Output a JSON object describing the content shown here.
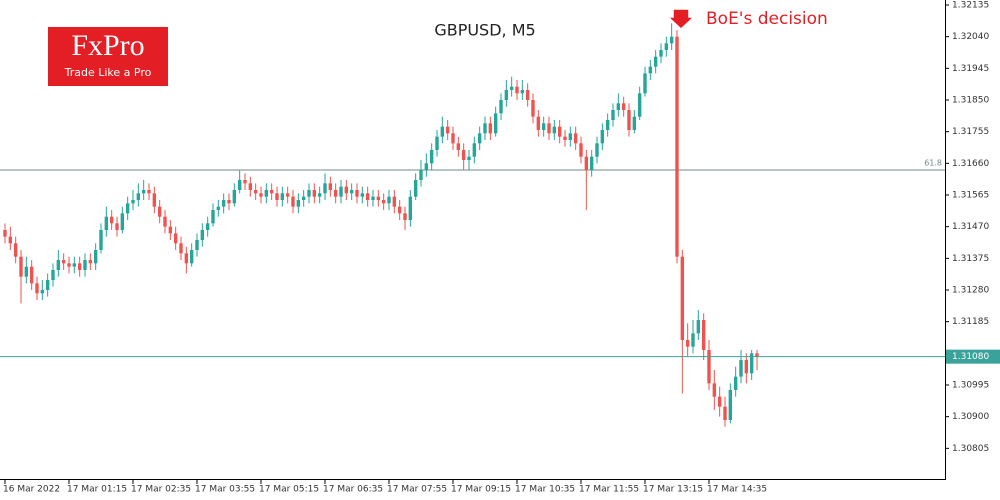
{
  "logo": {
    "brand": "FxPro",
    "tagline": "Trade Like a Pro"
  },
  "chart_data": {
    "type": "candlestick",
    "title": "GBPUSD, M5",
    "up_color": "#26a69a",
    "down_color": "#ef5350",
    "ylim": [
      1.3071,
      1.3215
    ],
    "yticks": [
      {
        "value": 1.32135,
        "label": "1.32135"
      },
      {
        "value": 1.3204,
        "label": "1.32040"
      },
      {
        "value": 1.31945,
        "label": "1.31945"
      },
      {
        "value": 1.3185,
        "label": "1.31850"
      },
      {
        "value": 1.31755,
        "label": "1.31755"
      },
      {
        "value": 1.3166,
        "label": "1.31660"
      },
      {
        "value": 1.31565,
        "label": "1.31565"
      },
      {
        "value": 1.3147,
        "label": "1.31470"
      },
      {
        "value": 1.31375,
        "label": "1.31375"
      },
      {
        "value": 1.3128,
        "label": "1.31280"
      },
      {
        "value": 1.31185,
        "label": "1.31185"
      },
      {
        "value": 1.30995,
        "label": "1.30995"
      },
      {
        "value": 1.309,
        "label": "1.30900"
      },
      {
        "value": 1.30805,
        "label": "1.30805"
      }
    ],
    "xticks": [
      {
        "value": 0,
        "label": "16 Mar 2022"
      },
      {
        "value": 12,
        "label": "17 Mar 01:15"
      },
      {
        "value": 24,
        "label": "17 Mar 02:35"
      },
      {
        "value": 36,
        "label": "17 Mar 03:55"
      },
      {
        "value": 48,
        "label": "17 Mar 05:15"
      },
      {
        "value": 60,
        "label": "17 Mar 06:35"
      },
      {
        "value": 72,
        "label": "17 Mar 07:55"
      },
      {
        "value": 84,
        "label": "17 Mar 09:15"
      },
      {
        "value": 96,
        "label": "17 Mar 10:35"
      },
      {
        "value": 108,
        "label": "17 Mar 11:55"
      },
      {
        "value": 120,
        "label": "17 Mar 13:15"
      },
      {
        "value": 132,
        "label": "17 Mar 14:35"
      }
    ],
    "level": {
      "label": "61.8",
      "value": 1.3164,
      "color": "#6f8c8a"
    },
    "last_price": {
      "value": 1.3108,
      "label": "1.31080",
      "color": "#3aa29a"
    },
    "annotation": "BoE's decision",
    "ohlc": [
      [
        1.3146,
        1.3148,
        1.3142,
        1.3144
      ],
      [
        1.3144,
        1.3147,
        1.314,
        1.3142
      ],
      [
        1.3142,
        1.3144,
        1.3136,
        1.3138
      ],
      [
        1.3138,
        1.314,
        1.3124,
        1.3132
      ],
      [
        1.3132,
        1.3138,
        1.313,
        1.3135
      ],
      [
        1.3135,
        1.3137,
        1.3128,
        1.313
      ],
      [
        1.313,
        1.3132,
        1.3125,
        1.3127
      ],
      [
        1.3127,
        1.3131,
        1.3125,
        1.3128
      ],
      [
        1.3128,
        1.3133,
        1.3126,
        1.3131
      ],
      [
        1.3131,
        1.3136,
        1.3129,
        1.3134
      ],
      [
        1.3134,
        1.314,
        1.3132,
        1.3137
      ],
      [
        1.3137,
        1.3139,
        1.3134,
        1.3136
      ],
      [
        1.3136,
        1.3138,
        1.3133,
        1.3135
      ],
      [
        1.3135,
        1.3138,
        1.3133,
        1.3136
      ],
      [
        1.3136,
        1.3138,
        1.3132,
        1.3134
      ],
      [
        1.3134,
        1.3139,
        1.3132,
        1.3137
      ],
      [
        1.3137,
        1.3139,
        1.3134,
        1.3136
      ],
      [
        1.3136,
        1.3142,
        1.3134,
        1.314
      ],
      [
        1.314,
        1.3148,
        1.3139,
        1.3146
      ],
      [
        1.3146,
        1.3153,
        1.3144,
        1.315
      ],
      [
        1.315,
        1.3152,
        1.3146,
        1.3148
      ],
      [
        1.3148,
        1.315,
        1.3144,
        1.3146
      ],
      [
        1.3146,
        1.3153,
        1.3145,
        1.3151
      ],
      [
        1.3151,
        1.3156,
        1.3149,
        1.3154
      ],
      [
        1.3154,
        1.3158,
        1.3152,
        1.3155
      ],
      [
        1.3155,
        1.316,
        1.3153,
        1.3157
      ],
      [
        1.3157,
        1.3161,
        1.3155,
        1.3158
      ],
      [
        1.3158,
        1.316,
        1.3155,
        1.3157
      ],
      [
        1.3157,
        1.3159,
        1.3151,
        1.3153
      ],
      [
        1.3153,
        1.3155,
        1.3148,
        1.315
      ],
      [
        1.315,
        1.3152,
        1.3145,
        1.3147
      ],
      [
        1.3147,
        1.3149,
        1.3143,
        1.3145
      ],
      [
        1.3145,
        1.3147,
        1.314,
        1.3142
      ],
      [
        1.3142,
        1.3144,
        1.3137,
        1.3139
      ],
      [
        1.3139,
        1.3141,
        1.3133,
        1.3136
      ],
      [
        1.3136,
        1.3142,
        1.3135,
        1.314
      ],
      [
        1.314,
        1.3145,
        1.3138,
        1.3143
      ],
      [
        1.3143,
        1.3148,
        1.3141,
        1.3146
      ],
      [
        1.3146,
        1.315,
        1.3144,
        1.3148
      ],
      [
        1.3148,
        1.3154,
        1.3147,
        1.3152
      ],
      [
        1.3152,
        1.3155,
        1.315,
        1.3153
      ],
      [
        1.3153,
        1.3157,
        1.3151,
        1.3155
      ],
      [
        1.3155,
        1.3157,
        1.3152,
        1.3154
      ],
      [
        1.3154,
        1.316,
        1.3153,
        1.3158
      ],
      [
        1.3158,
        1.3164,
        1.3157,
        1.3161
      ],
      [
        1.3161,
        1.3163,
        1.3158,
        1.316
      ],
      [
        1.316,
        1.3162,
        1.3156,
        1.3158
      ],
      [
        1.3158,
        1.316,
        1.3155,
        1.3157
      ],
      [
        1.3157,
        1.3159,
        1.3154,
        1.3156
      ],
      [
        1.3156,
        1.316,
        1.3154,
        1.3158
      ],
      [
        1.3158,
        1.316,
        1.3155,
        1.3157
      ],
      [
        1.3157,
        1.3159,
        1.3153,
        1.3155
      ],
      [
        1.3155,
        1.3159,
        1.3153,
        1.3157
      ],
      [
        1.3157,
        1.3159,
        1.3154,
        1.3156
      ],
      [
        1.3156,
        1.3158,
        1.3151,
        1.3153
      ],
      [
        1.3153,
        1.3157,
        1.3151,
        1.3155
      ],
      [
        1.3155,
        1.3158,
        1.3153,
        1.3156
      ],
      [
        1.3156,
        1.316,
        1.3154,
        1.3158
      ],
      [
        1.3158,
        1.316,
        1.3154,
        1.3156
      ],
      [
        1.3156,
        1.3159,
        1.3154,
        1.3157
      ],
      [
        1.3157,
        1.3163,
        1.3155,
        1.316
      ],
      [
        1.316,
        1.3162,
        1.3156,
        1.3158
      ],
      [
        1.3158,
        1.316,
        1.3154,
        1.3156
      ],
      [
        1.3156,
        1.3161,
        1.3154,
        1.3159
      ],
      [
        1.3159,
        1.3161,
        1.3155,
        1.3157
      ],
      [
        1.3157,
        1.316,
        1.3155,
        1.3158
      ],
      [
        1.3158,
        1.316,
        1.3154,
        1.3156
      ],
      [
        1.3156,
        1.3159,
        1.3154,
        1.3157
      ],
      [
        1.3157,
        1.3159,
        1.3153,
        1.3155
      ],
      [
        1.3155,
        1.3158,
        1.3153,
        1.3156
      ],
      [
        1.3156,
        1.3158,
        1.3153,
        1.3155
      ],
      [
        1.3155,
        1.3157,
        1.3152,
        1.3154
      ],
      [
        1.3154,
        1.3158,
        1.3152,
        1.3156
      ],
      [
        1.3156,
        1.3158,
        1.3151,
        1.3153
      ],
      [
        1.3153,
        1.3155,
        1.3149,
        1.3151
      ],
      [
        1.3151,
        1.3153,
        1.3146,
        1.3149
      ],
      [
        1.3149,
        1.3158,
        1.3147,
        1.3156
      ],
      [
        1.3156,
        1.3163,
        1.3155,
        1.3161
      ],
      [
        1.3161,
        1.3167,
        1.3159,
        1.3164
      ],
      [
        1.3164,
        1.3169,
        1.3162,
        1.3166
      ],
      [
        1.3166,
        1.3172,
        1.3164,
        1.317
      ],
      [
        1.317,
        1.3176,
        1.3168,
        1.3174
      ],
      [
        1.3174,
        1.318,
        1.3172,
        1.3177
      ],
      [
        1.3177,
        1.3179,
        1.3173,
        1.3175
      ],
      [
        1.3175,
        1.3177,
        1.317,
        1.3172
      ],
      [
        1.3172,
        1.3174,
        1.3168,
        1.317
      ],
      [
        1.317,
        1.3172,
        1.3164,
        1.3167
      ],
      [
        1.3167,
        1.317,
        1.3164,
        1.3168
      ],
      [
        1.3168,
        1.3174,
        1.3166,
        1.3172
      ],
      [
        1.3172,
        1.3177,
        1.317,
        1.3175
      ],
      [
        1.3175,
        1.318,
        1.3173,
        1.3178
      ],
      [
        1.3178,
        1.318,
        1.3173,
        1.3175
      ],
      [
        1.3175,
        1.3183,
        1.3174,
        1.3181
      ],
      [
        1.3181,
        1.3187,
        1.3179,
        1.3185
      ],
      [
        1.3185,
        1.3191,
        1.3183,
        1.3188
      ],
      [
        1.3188,
        1.3192,
        1.3186,
        1.3189
      ],
      [
        1.3189,
        1.3191,
        1.3185,
        1.3187
      ],
      [
        1.3187,
        1.3191,
        1.3185,
        1.3188
      ],
      [
        1.3188,
        1.319,
        1.3183,
        1.3185
      ],
      [
        1.3185,
        1.3187,
        1.3178,
        1.318
      ],
      [
        1.318,
        1.3182,
        1.3174,
        1.3176
      ],
      [
        1.3176,
        1.318,
        1.3174,
        1.3178
      ],
      [
        1.3178,
        1.318,
        1.3173,
        1.3175
      ],
      [
        1.3175,
        1.3179,
        1.3173,
        1.3177
      ],
      [
        1.3177,
        1.3179,
        1.3172,
        1.3174
      ],
      [
        1.3174,
        1.3176,
        1.3171,
        1.3173
      ],
      [
        1.3173,
        1.3177,
        1.3171,
        1.3175
      ],
      [
        1.3175,
        1.3177,
        1.317,
        1.3172
      ],
      [
        1.3172,
        1.3174,
        1.3166,
        1.3168
      ],
      [
        1.3168,
        1.317,
        1.3152,
        1.3164
      ],
      [
        1.3164,
        1.317,
        1.3162,
        1.3168
      ],
      [
        1.3168,
        1.3174,
        1.3166,
        1.3172
      ],
      [
        1.3172,
        1.3178,
        1.317,
        1.3176
      ],
      [
        1.3176,
        1.3181,
        1.3174,
        1.3179
      ],
      [
        1.3179,
        1.3184,
        1.3177,
        1.3182
      ],
      [
        1.3182,
        1.3187,
        1.318,
        1.3184
      ],
      [
        1.3184,
        1.3186,
        1.318,
        1.3182
      ],
      [
        1.3182,
        1.3184,
        1.3174,
        1.3176
      ],
      [
        1.3176,
        1.3182,
        1.3175,
        1.318
      ],
      [
        1.318,
        1.3189,
        1.3179,
        1.3187
      ],
      [
        1.3187,
        1.3195,
        1.3186,
        1.3193
      ],
      [
        1.3193,
        1.3197,
        1.3191,
        1.3195
      ],
      [
        1.3195,
        1.32,
        1.3193,
        1.3198
      ],
      [
        1.3198,
        1.3202,
        1.3196,
        1.32
      ],
      [
        1.32,
        1.3204,
        1.3198,
        1.3202
      ],
      [
        1.3202,
        1.3208,
        1.32,
        1.3204
      ],
      [
        1.3204,
        1.3206,
        1.3136,
        1.3138
      ],
      [
        1.3138,
        1.314,
        1.3097,
        1.3113
      ],
      [
        1.3113,
        1.3118,
        1.3108,
        1.3111
      ],
      [
        1.3111,
        1.3119,
        1.3109,
        1.3115
      ],
      [
        1.3115,
        1.3122,
        1.3113,
        1.3119
      ],
      [
        1.3119,
        1.3121,
        1.3107,
        1.311
      ],
      [
        1.311,
        1.3113,
        1.3098,
        1.31
      ],
      [
        1.31,
        1.3104,
        1.3092,
        1.3096
      ],
      [
        1.3096,
        1.3099,
        1.309,
        1.3093
      ],
      [
        1.3093,
        1.3096,
        1.3087,
        1.3089
      ],
      [
        1.3089,
        1.31,
        1.3088,
        1.3098
      ],
      [
        1.3098,
        1.3105,
        1.3096,
        1.3102
      ],
      [
        1.3102,
        1.311,
        1.31,
        1.3107
      ],
      [
        1.3107,
        1.3109,
        1.31,
        1.3103
      ],
      [
        1.3103,
        1.311,
        1.3101,
        1.3109
      ],
      [
        1.3109,
        1.311,
        1.3104,
        1.3108
      ]
    ]
  }
}
